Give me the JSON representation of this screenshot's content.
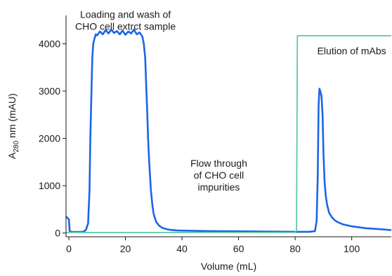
{
  "chart_data": {
    "type": "line",
    "xlabel": "Volume (mL)",
    "ylabel": {
      "prefix": "A",
      "subscript": "280",
      "suffix": " nm (mAU)"
    },
    "xlim": [
      -1,
      114
    ],
    "ylim": [
      -80,
      4600
    ],
    "xticks": [
      {
        "value": 0,
        "label": "0"
      },
      {
        "value": 20,
        "label": "20"
      },
      {
        "value": 40,
        "label": "40"
      },
      {
        "value": 60,
        "label": "60"
      },
      {
        "value": 80,
        "label": "80"
      },
      {
        "value": 100,
        "label": "100"
      }
    ],
    "yticks": [
      {
        "value": 0,
        "label": "0"
      },
      {
        "value": 1000,
        "label": "1000"
      },
      {
        "value": 2000,
        "label": "2000"
      },
      {
        "value": 3000,
        "label": "3000"
      },
      {
        "value": 4000,
        "label": "4000"
      }
    ],
    "grid": false,
    "series": [
      {
        "color": "#1a66e6",
        "x": [
          -1,
          -0.5,
          0,
          0.3,
          1,
          3,
          5,
          6,
          6.8,
          7.3,
          7.6,
          8,
          8.3,
          8.6,
          9,
          9.5,
          10,
          11,
          12,
          13,
          14,
          15,
          16,
          17,
          18,
          19,
          20,
          21,
          22,
          23,
          24,
          25,
          26,
          26.5,
          27,
          27.3,
          27.7,
          28,
          28.4,
          29,
          29.6,
          30,
          30.5,
          31,
          32,
          33,
          34,
          35,
          36,
          38,
          40,
          45,
          50,
          60,
          70,
          80,
          85,
          87,
          87.6,
          88,
          88.3,
          88.6,
          88.9,
          89.3,
          89.7,
          90,
          90.4,
          90.8,
          91.3,
          92,
          93,
          94,
          95,
          97,
          100,
          105,
          110,
          114
        ],
        "y": [
          350,
          320,
          290,
          40,
          20,
          20,
          25,
          60,
          200,
          900,
          2000,
          3000,
          3700,
          4000,
          4100,
          4200,
          4180,
          4260,
          4200,
          4290,
          4220,
          4300,
          4230,
          4270,
          4200,
          4280,
          4190,
          4260,
          4220,
          4300,
          4200,
          4240,
          4150,
          4000,
          3700,
          3200,
          2600,
          2000,
          1500,
          900,
          550,
          400,
          300,
          220,
          150,
          110,
          90,
          75,
          65,
          55,
          50,
          45,
          40,
          35,
          30,
          25,
          25,
          40,
          250,
          1200,
          2700,
          3050,
          3000,
          2900,
          2500,
          1700,
          1100,
          800,
          600,
          430,
          330,
          270,
          230,
          180,
          140,
          100,
          80,
          60
        ]
      },
      {
        "color": "#5cc8a8",
        "x": [
          -1,
          80,
          80.5,
          80.8,
          114
        ],
        "y": [
          10,
          10,
          50,
          4170,
          4170
        ]
      }
    ],
    "annotations": [
      {
        "lines": [
          "Loading and wash of",
          "CHO cell extrct sample"
        ],
        "x": 20,
        "y": 4550,
        "anchor": "middle"
      },
      {
        "lines": [
          "Flow through",
          "of CHO cell",
          "impurities"
        ],
        "x": 53,
        "y": 1400,
        "anchor": "middle"
      },
      {
        "lines": [
          "Elution of mAbs"
        ],
        "x": 100,
        "y": 3780,
        "anchor": "middle"
      }
    ]
  }
}
